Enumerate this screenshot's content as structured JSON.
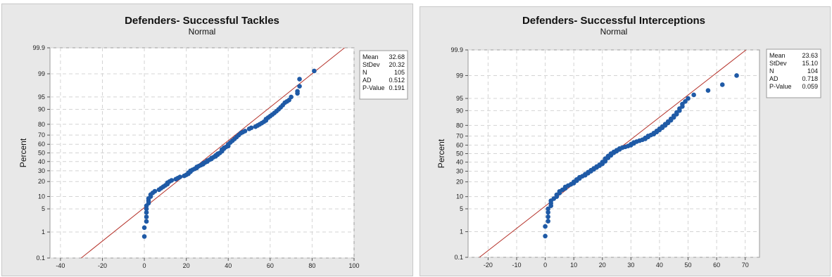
{
  "chart_data": [
    {
      "type": "scatter",
      "subtype": "normal-probability-plot",
      "title": "Defenders- Successful Tackles",
      "subtitle": "Normal",
      "ylabel": "Percent",
      "xlabel": "",
      "xlim": [
        -45,
        100
      ],
      "x_ticks": [
        -40,
        -20,
        0,
        20,
        40,
        60,
        80,
        100
      ],
      "y_scale": "normal-probability",
      "y_ticks": [
        "0.1",
        "1",
        "5",
        "10",
        "20",
        "30",
        "40",
        "50",
        "60",
        "70",
        "80",
        "90",
        "95",
        "99",
        "99.9"
      ],
      "grid": true,
      "fit_line": {
        "mean": 32.68,
        "stdev": 20.32
      },
      "stats": [
        {
          "label": "Mean",
          "value": "32.68"
        },
        {
          "label": "StDev",
          "value": "20.32"
        },
        {
          "label": "N",
          "value": "105"
        },
        {
          "label": "AD",
          "value": "0.512"
        },
        {
          "label": "P-Value",
          "value": "0.191"
        }
      ],
      "points": [
        [
          0,
          0.7
        ],
        [
          0,
          1.4
        ],
        [
          1,
          2.2
        ],
        [
          1,
          3
        ],
        [
          1,
          4
        ],
        [
          1,
          5
        ],
        [
          1,
          6
        ],
        [
          2,
          7
        ],
        [
          2,
          8
        ],
        [
          2,
          9
        ],
        [
          3,
          10
        ],
        [
          3,
          11
        ],
        [
          4,
          12
        ],
        [
          5,
          13
        ],
        [
          7,
          14
        ],
        [
          8,
          15
        ],
        [
          9,
          16
        ],
        [
          10,
          17
        ],
        [
          11,
          18
        ],
        [
          11,
          19
        ],
        [
          12,
          20
        ],
        [
          13,
          21
        ],
        [
          15,
          22
        ],
        [
          16,
          23
        ],
        [
          17,
          24
        ],
        [
          19,
          25
        ],
        [
          20,
          26
        ],
        [
          21,
          27
        ],
        [
          21,
          28
        ],
        [
          22,
          29
        ],
        [
          22,
          30
        ],
        [
          23,
          31
        ],
        [
          24,
          32
        ],
        [
          25,
          33
        ],
        [
          25,
          34
        ],
        [
          26,
          35
        ],
        [
          27,
          36
        ],
        [
          28,
          37
        ],
        [
          28,
          38
        ],
        [
          29,
          39
        ],
        [
          30,
          40
        ],
        [
          30,
          41
        ],
        [
          31,
          42
        ],
        [
          32,
          43
        ],
        [
          32,
          44
        ],
        [
          33,
          45
        ],
        [
          34,
          46
        ],
        [
          34,
          47
        ],
        [
          35,
          48
        ],
        [
          35,
          49
        ],
        [
          36,
          50
        ],
        [
          37,
          52
        ],
        [
          37,
          54
        ],
        [
          38,
          55
        ],
        [
          38,
          56
        ],
        [
          39,
          57
        ],
        [
          40,
          58
        ],
        [
          40,
          60
        ],
        [
          41,
          62
        ],
        [
          42,
          64
        ],
        [
          43,
          66
        ],
        [
          44,
          68
        ],
        [
          45,
          70
        ],
        [
          46,
          72
        ],
        [
          47,
          73
        ],
        [
          48,
          74
        ],
        [
          50,
          76
        ],
        [
          51,
          77
        ],
        [
          53,
          78
        ],
        [
          54,
          79
        ],
        [
          55,
          80
        ],
        [
          56,
          81
        ],
        [
          57,
          82
        ],
        [
          58,
          83
        ],
        [
          58,
          84
        ],
        [
          59,
          85
        ],
        [
          60,
          86
        ],
        [
          61,
          87
        ],
        [
          62,
          88
        ],
        [
          63,
          89
        ],
        [
          64,
          90
        ],
        [
          65,
          91
        ],
        [
          66,
          92
        ],
        [
          67,
          93
        ],
        [
          68,
          93.5
        ],
        [
          69,
          94
        ],
        [
          70,
          95
        ],
        [
          73,
          96
        ],
        [
          73,
          96.5
        ],
        [
          74,
          97.5
        ],
        [
          74,
          98.5
        ],
        [
          81,
          99.2
        ]
      ]
    },
    {
      "type": "scatter",
      "subtype": "normal-probability-plot",
      "title": "Defenders- Successful Interceptions",
      "subtitle": "Normal",
      "ylabel": "Percent",
      "xlabel": "",
      "xlim": [
        -27,
        75
      ],
      "x_ticks": [
        -20,
        -10,
        0,
        10,
        20,
        30,
        40,
        50,
        60,
        70
      ],
      "y_scale": "normal-probability",
      "y_ticks": [
        "0.1",
        "1",
        "5",
        "10",
        "20",
        "30",
        "40",
        "50",
        "60",
        "70",
        "80",
        "90",
        "95",
        "99",
        "99.9"
      ],
      "grid": true,
      "fit_line": {
        "mean": 23.63,
        "stdev": 15.1
      },
      "stats": [
        {
          "label": "Mean",
          "value": "23.63"
        },
        {
          "label": "StDev",
          "value": "15.10"
        },
        {
          "label": "N",
          "value": "104"
        },
        {
          "label": "AD",
          "value": "0.718"
        },
        {
          "label": "P-Value",
          "value": "0.059"
        }
      ],
      "points": [
        [
          0,
          0.7
        ],
        [
          0,
          1.5
        ],
        [
          1,
          2.2
        ],
        [
          1,
          3
        ],
        [
          1,
          4
        ],
        [
          1,
          5
        ],
        [
          2,
          6
        ],
        [
          2,
          7
        ],
        [
          2,
          8
        ],
        [
          3,
          9
        ],
        [
          4,
          10
        ],
        [
          4,
          11
        ],
        [
          5,
          12
        ],
        [
          5,
          13
        ],
        [
          6,
          14
        ],
        [
          7,
          15
        ],
        [
          7,
          16
        ],
        [
          8,
          17
        ],
        [
          9,
          18
        ],
        [
          10,
          19
        ],
        [
          10,
          20
        ],
        [
          11,
          21
        ],
        [
          11,
          22
        ],
        [
          12,
          23
        ],
        [
          12,
          24
        ],
        [
          13,
          25
        ],
        [
          14,
          26
        ],
        [
          14,
          27
        ],
        [
          15,
          28
        ],
        [
          15,
          29
        ],
        [
          16,
          30
        ],
        [
          16,
          31
        ],
        [
          17,
          32
        ],
        [
          17,
          33
        ],
        [
          18,
          34
        ],
        [
          18,
          35
        ],
        [
          19,
          36
        ],
        [
          19,
          37
        ],
        [
          20,
          38
        ],
        [
          20,
          39
        ],
        [
          20,
          40
        ],
        [
          21,
          41
        ],
        [
          21,
          42
        ],
        [
          21,
          43
        ],
        [
          21,
          44
        ],
        [
          22,
          45
        ],
        [
          22,
          46
        ],
        [
          22,
          47
        ],
        [
          23,
          48
        ],
        [
          23,
          49
        ],
        [
          23,
          50
        ],
        [
          24,
          51
        ],
        [
          24,
          52
        ],
        [
          25,
          53
        ],
        [
          25,
          54
        ],
        [
          26,
          55
        ],
        [
          26,
          56
        ],
        [
          27,
          57
        ],
        [
          28,
          58
        ],
        [
          29,
          59
        ],
        [
          30,
          60
        ],
        [
          30,
          61
        ],
        [
          31,
          62
        ],
        [
          31,
          63
        ],
        [
          32,
          64
        ],
        [
          33,
          65
        ],
        [
          34,
          66
        ],
        [
          35,
          67
        ],
        [
          35,
          68
        ],
        [
          36,
          69
        ],
        [
          36,
          70
        ],
        [
          37,
          71
        ],
        [
          38,
          72
        ],
        [
          38,
          73
        ],
        [
          39,
          74
        ],
        [
          39,
          75
        ],
        [
          40,
          76
        ],
        [
          40,
          77
        ],
        [
          41,
          78
        ],
        [
          41,
          79
        ],
        [
          42,
          80
        ],
        [
          42,
          81
        ],
        [
          43,
          82
        ],
        [
          43,
          83
        ],
        [
          44,
          84
        ],
        [
          44,
          85
        ],
        [
          45,
          86
        ],
        [
          45,
          87
        ],
        [
          46,
          88
        ],
        [
          46,
          89
        ],
        [
          47,
          90
        ],
        [
          47,
          91
        ],
        [
          48,
          92
        ],
        [
          48,
          93
        ],
        [
          49,
          94
        ],
        [
          50,
          95
        ],
        [
          52,
          96
        ],
        [
          57,
          97
        ],
        [
          62,
          98
        ],
        [
          67,
          99
        ]
      ]
    }
  ]
}
